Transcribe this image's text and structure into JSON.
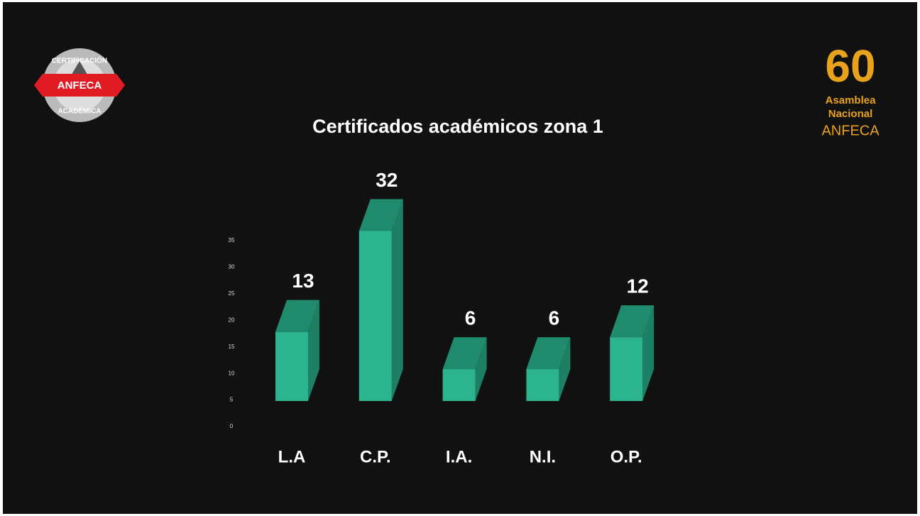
{
  "header": {
    "left_logo": {
      "top": "CERTIFICACIÓN",
      "middle": "ANFECA",
      "bottom": "ACADÉMICA"
    },
    "right_logo": {
      "number": "60",
      "line1": "Asamblea",
      "line2": "Nacional",
      "line3": "ANFECA"
    }
  },
  "chart_data": {
    "type": "bar3d",
    "title": "Certificados académicos zona 1",
    "categories": [
      "L.A",
      "C.P.",
      "I.A.",
      "N.I.",
      "O.P."
    ],
    "values": [
      13,
      32,
      6,
      6,
      12
    ],
    "ylim": [
      0,
      35
    ],
    "yticks": [
      0,
      5,
      10,
      15,
      20,
      25,
      30,
      35
    ],
    "color": "#2bb48e",
    "top_color": "#1f8a6c",
    "side_color": "#1d7f63"
  }
}
